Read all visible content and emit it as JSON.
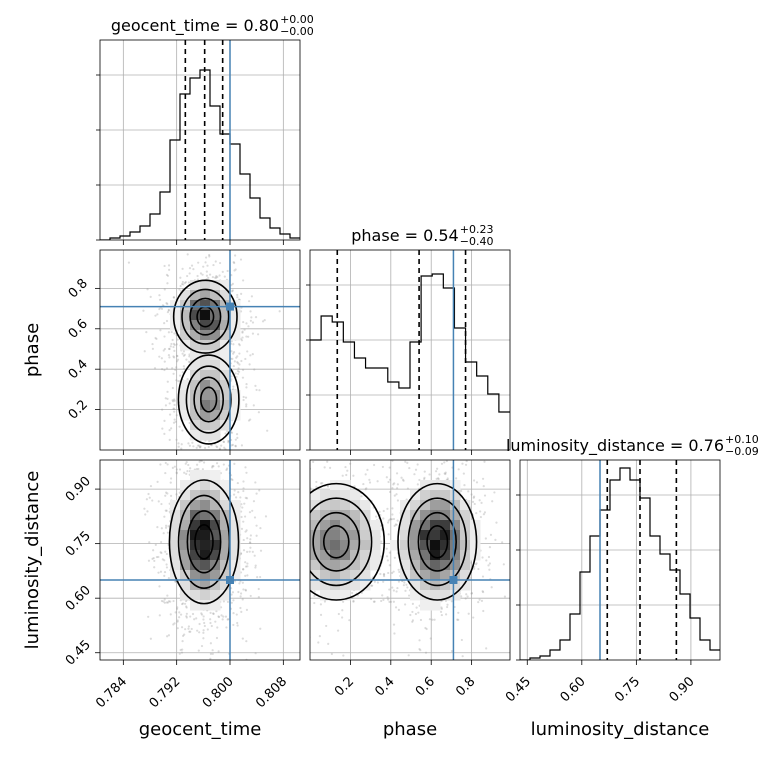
{
  "chart_data": {
    "type": "corner",
    "parameters": [
      "geocent_time",
      "phase",
      "luminosity_distance"
    ],
    "truths": {
      "geocent_time": 0.8,
      "phase": 0.71,
      "luminosity_distance": 0.65
    },
    "titles": {
      "geocent_time": {
        "label": "geocent_time",
        "median": "0.80",
        "plus": "+0.00",
        "minus": "−0.00"
      },
      "phase": {
        "label": "phase",
        "median": "0.54",
        "plus": "+0.23",
        "minus": "−0.40"
      },
      "luminosity_distance": {
        "label": "luminosity_distance",
        "median": "0.76",
        "plus": "+0.10",
        "minus": "−0.09"
      }
    },
    "ranges": {
      "geocent_time": [
        0.7805,
        0.8105
      ],
      "phase": [
        0.0,
        0.99
      ],
      "luminosity_distance": [
        0.43,
        0.98
      ]
    },
    "ticks": {
      "geocent_time": [
        0.784,
        0.792,
        0.8,
        0.808
      ],
      "phase": [
        0.2,
        0.4,
        0.6,
        0.8
      ],
      "luminosity_distance": [
        0.45,
        0.6,
        0.75,
        0.9
      ]
    },
    "tick_labels": {
      "geocent_time": [
        "0.784",
        "0.792",
        "0.800",
        "0.808"
      ],
      "phase": [
        "0.2",
        "0.4",
        "0.6",
        "0.8"
      ],
      "luminosity_distance": [
        "0.45",
        "0.60",
        "0.75",
        "0.90"
      ]
    },
    "quantiles": {
      "geocent_time": [
        0.7933,
        0.7962,
        0.7989
      ],
      "phase": [
        0.135,
        0.54,
        0.77
      ],
      "luminosity_distance": [
        0.67,
        0.76,
        0.86
      ]
    },
    "histograms": {
      "geocent_time": [
        0.0,
        0.01,
        0.02,
        0.04,
        0.07,
        0.13,
        0.24,
        0.5,
        0.73,
        0.81,
        0.85,
        0.67,
        0.53,
        0.48,
        0.33,
        0.21,
        0.11,
        0.06,
        0.03,
        0.01
      ],
      "phase": [
        0.55,
        0.67,
        0.64,
        0.54,
        0.46,
        0.41,
        0.41,
        0.34,
        0.31,
        0.54,
        0.87,
        0.88,
        0.81,
        0.61,
        0.44,
        0.37,
        0.28,
        0.19
      ],
      "luminosity_distance": [
        0.0,
        0.01,
        0.02,
        0.05,
        0.1,
        0.23,
        0.44,
        0.62,
        0.75,
        0.9,
        0.96,
        0.9,
        0.81,
        0.62,
        0.53,
        0.45,
        0.33,
        0.21,
        0.1,
        0.05
      ]
    },
    "grid": true
  }
}
